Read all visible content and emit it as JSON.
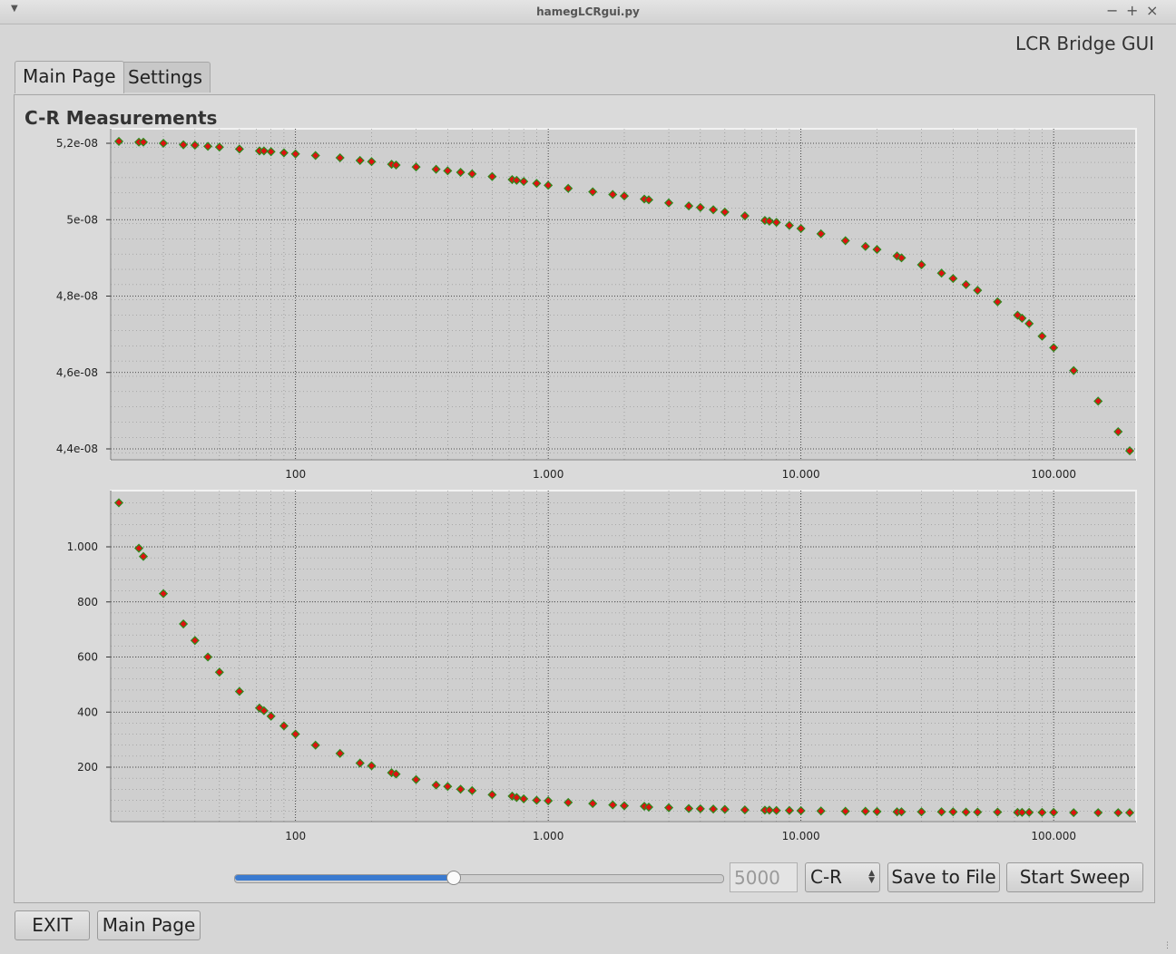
{
  "window": {
    "title": "hamegLCRgui.py",
    "menu_icon": "chevron-down-icon",
    "controls": [
      "−",
      "+",
      "×"
    ]
  },
  "app_heading": "LCR Bridge GUI",
  "tabs": [
    {
      "label": "Main Page",
      "active": true
    },
    {
      "label": "Settings",
      "active": false
    }
  ],
  "plot_title": "C-R Measurements",
  "controls": {
    "slider_fraction": 0.45,
    "frequency_value": "5000",
    "mode_select": "C-R",
    "save_label": "Save to File",
    "sweep_label": "Start Sweep"
  },
  "footer": {
    "exit_label": "EXIT",
    "main_page_label": "Main Page"
  },
  "colors": {
    "marker_fill": "#e01010",
    "marker_edge": "#2e8b1e",
    "plot_bg": "#cfcfcf",
    "grid": "#222222",
    "slider_fill": "#3a7ad0"
  },
  "chart_data": [
    {
      "type": "scatter",
      "title": "",
      "xlabel": "",
      "ylabel": "",
      "x_scale": "log",
      "xlim": [
        20,
        200000
      ],
      "ylim": [
        4.39e-08,
        5.22e-08
      ],
      "x_ticks": [
        100,
        1000,
        10000,
        100000
      ],
      "x_tick_labels": [
        "100",
        "1.000",
        "10.000",
        "100.000"
      ],
      "y_ticks": [
        4.4e-08,
        4.6e-08,
        4.8e-08,
        5e-08,
        5.2e-08
      ],
      "y_tick_labels": [
        "4,4e-08",
        "4,6e-08",
        "4,8e-08",
        "5e-08",
        "5,2e-08"
      ],
      "grid": true,
      "x": [
        20,
        24,
        25,
        30,
        36,
        40,
        45,
        50,
        60,
        72,
        75,
        80,
        90,
        100,
        120,
        150,
        180,
        200,
        240,
        250,
        300,
        360,
        400,
        450,
        500,
        600,
        720,
        750,
        800,
        900,
        1000,
        1200,
        1500,
        1800,
        2000,
        2400,
        2500,
        3000,
        3600,
        4000,
        4500,
        5000,
        6000,
        7200,
        7500,
        8000,
        9000,
        10000,
        12000,
        15000,
        18000,
        20000,
        24000,
        25000,
        30000,
        36000,
        40000,
        45000,
        50000,
        60000,
        72000,
        75000,
        80000,
        90000,
        100000,
        120000,
        150000,
        180000,
        200000
      ],
      "y": [
        5.205e-08,
        5.203e-08,
        5.203e-08,
        5.2e-08,
        5.196e-08,
        5.195e-08,
        5.192e-08,
        5.19e-08,
        5.185e-08,
        5.18e-08,
        5.18e-08,
        5.178e-08,
        5.175e-08,
        5.172e-08,
        5.168e-08,
        5.162e-08,
        5.155e-08,
        5.152e-08,
        5.145e-08,
        5.143e-08,
        5.138e-08,
        5.132e-08,
        5.128e-08,
        5.124e-08,
        5.12e-08,
        5.113e-08,
        5.105e-08,
        5.103e-08,
        5.1e-08,
        5.095e-08,
        5.09e-08,
        5.082e-08,
        5.073e-08,
        5.066e-08,
        5.062e-08,
        5.054e-08,
        5.052e-08,
        5.044e-08,
        5.036e-08,
        5.032e-08,
        5.026e-08,
        5.02e-08,
        5.01e-08,
        4.998e-08,
        4.996e-08,
        4.993e-08,
        4.985e-08,
        4.977e-08,
        4.963e-08,
        4.945e-08,
        4.93e-08,
        4.922e-08,
        4.905e-08,
        4.9e-08,
        4.882e-08,
        4.86e-08,
        4.846e-08,
        4.83e-08,
        4.815e-08,
        4.785e-08,
        4.75e-08,
        4.742e-08,
        4.728e-08,
        4.695e-08,
        4.665e-08,
        4.605e-08,
        4.525e-08,
        4.445e-08,
        4.395e-08
      ]
    },
    {
      "type": "scatter",
      "title": "",
      "xlabel": "",
      "ylabel": "",
      "x_scale": "log",
      "xlim": [
        20,
        200000
      ],
      "ylim": [
        0,
        1200
      ],
      "x_ticks": [
        100,
        1000,
        10000,
        100000
      ],
      "x_tick_labels": [
        "100",
        "1.000",
        "10.000",
        "100.000"
      ],
      "y_ticks": [
        200,
        400,
        600,
        800,
        1000
      ],
      "y_tick_labels": [
        "200",
        "400",
        "600",
        "800",
        "1.000"
      ],
      "grid": true,
      "x": [
        20,
        24,
        25,
        30,
        36,
        40,
        45,
        50,
        60,
        72,
        75,
        80,
        90,
        100,
        120,
        150,
        180,
        200,
        240,
        250,
        300,
        360,
        400,
        450,
        500,
        600,
        720,
        750,
        800,
        900,
        1000,
        1200,
        1500,
        1800,
        2000,
        2400,
        2500,
        3000,
        3600,
        4000,
        4500,
        5000,
        6000,
        7200,
        7500,
        8000,
        9000,
        10000,
        12000,
        15000,
        18000,
        20000,
        24000,
        25000,
        30000,
        36000,
        40000,
        45000,
        50000,
        60000,
        72000,
        75000,
        80000,
        90000,
        100000,
        120000,
        150000,
        180000,
        200000
      ],
      "y": [
        1160,
        995,
        965,
        830,
        720,
        660,
        600,
        545,
        475,
        415,
        405,
        385,
        350,
        320,
        280,
        250,
        215,
        205,
        180,
        175,
        155,
        135,
        130,
        120,
        115,
        100,
        95,
        90,
        85,
        80,
        78,
        72,
        68,
        63,
        60,
        58,
        55,
        53,
        50,
        49,
        48,
        47,
        45,
        44,
        44,
        43,
        43,
        42,
        41,
        40,
        40,
        39,
        38,
        38,
        38,
        38,
        38,
        37,
        37,
        37,
        36,
        36,
        36,
        36,
        36,
        35,
        35,
        35,
        35
      ]
    }
  ]
}
